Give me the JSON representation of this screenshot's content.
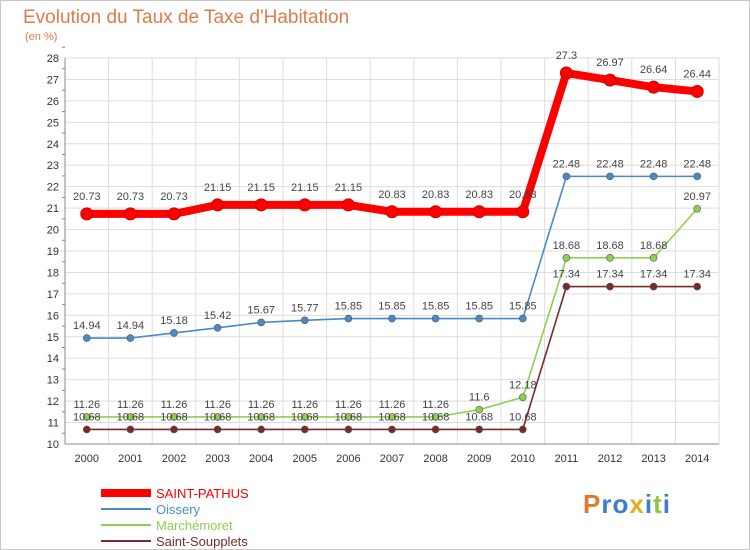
{
  "header": {
    "title": "Evolution du Taux de Taxe d'Habitation",
    "subtitle": "(en %)"
  },
  "logo": {
    "letters": [
      "P",
      "r",
      "o",
      "x",
      "i",
      "t",
      "i"
    ],
    "colors": [
      "#e07a2a",
      "#3a7fc8",
      "#3a7fc8",
      "#e0b020",
      "#3a7fc8",
      "#8cc63f",
      "#3a7fc8"
    ]
  },
  "chart_data": {
    "type": "line",
    "title": "Evolution du Taux de Taxe d'Habitation",
    "subtitle": "(en %)",
    "xlabel": "",
    "ylabel": "(en %)",
    "x": [
      "2000",
      "2001",
      "2002",
      "2003",
      "2004",
      "2005",
      "2006",
      "2007",
      "2008",
      "2009",
      "2010",
      "2011",
      "2012",
      "2013",
      "2014"
    ],
    "ylim": [
      10,
      28
    ],
    "yticks": [
      "10",
      "11",
      "12",
      "13",
      "14",
      "15",
      "16",
      "17",
      "18",
      "19",
      "20",
      "21",
      "22",
      "23",
      "24",
      "25",
      "26",
      "27",
      "28"
    ],
    "grid": true,
    "legend": "bottom-left",
    "series": [
      {
        "name": "SAINT-PATHUS",
        "color": "#ff0000",
        "values": [
          20.73,
          20.73,
          20.73,
          21.15,
          21.15,
          21.15,
          21.15,
          20.83,
          20.83,
          20.83,
          20.83,
          27.3,
          26.97,
          26.64,
          26.44
        ],
        "labels": [
          "20.73",
          "20.73",
          "20.73",
          "21.15",
          "21.15",
          "21.15",
          "21.15",
          "20.83",
          "20.83",
          "20.83",
          "20.83",
          "27.3",
          "26.97",
          "26.64",
          "26.44"
        ]
      },
      {
        "name": "Oissery",
        "color": "#4a8ac8",
        "values": [
          14.94,
          14.94,
          15.18,
          15.42,
          15.67,
          15.77,
          15.85,
          15.85,
          15.85,
          15.85,
          15.85,
          22.48,
          22.48,
          22.48,
          22.48
        ],
        "labels": [
          "14.94",
          "14.94",
          "15.18",
          "15.42",
          "15.67",
          "15.77",
          "15.85",
          "15.85",
          "15.85",
          "15.85",
          "15.85",
          "22.48",
          "22.48",
          "22.48",
          "22.48"
        ]
      },
      {
        "name": "Marchémoret",
        "color": "#8cd050",
        "values": [
          11.26,
          11.26,
          11.26,
          11.26,
          11.26,
          11.26,
          11.26,
          11.26,
          11.26,
          11.6,
          12.18,
          18.68,
          18.68,
          18.68,
          20.97
        ],
        "labels": [
          "11.26",
          "11.26",
          "11.26",
          "11.26",
          "11.26",
          "11.26",
          "11.26",
          "11.26",
          "11.26",
          "11.6",
          "12.18",
          "18.68",
          "18.68",
          "18.68",
          "20.97"
        ]
      },
      {
        "name": "Saint-Soupplets",
        "color": "#7a2a2a",
        "values": [
          10.68,
          10.68,
          10.68,
          10.68,
          10.68,
          10.68,
          10.68,
          10.68,
          10.68,
          10.68,
          10.68,
          17.34,
          17.34,
          17.34,
          17.34
        ],
        "labels": [
          "10.68",
          "10.68",
          "10.68",
          "10.68",
          "10.68",
          "10.68",
          "10.68",
          "10.68",
          "10.68",
          "10.68",
          "10.68",
          "17.34",
          "17.34",
          "17.34",
          "17.34"
        ]
      }
    ]
  }
}
